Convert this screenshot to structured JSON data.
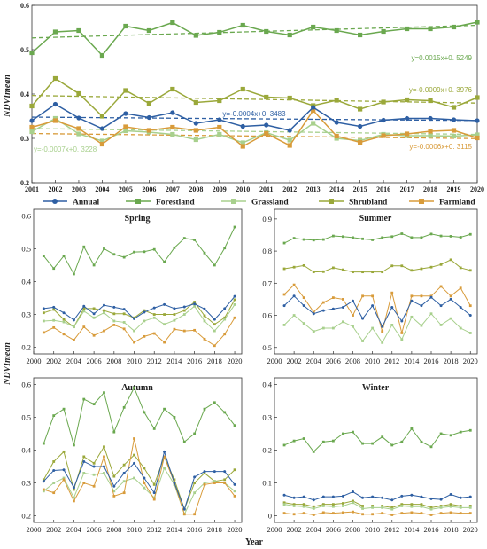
{
  "colors": {
    "Annual": "#2e5fa3",
    "Forestland": "#6aa84f",
    "Grassland": "#a8d08d",
    "Shrubland": "#9aa83a",
    "Farmland": "#d89b3a"
  },
  "legend": {
    "labels": [
      "Annual",
      "Forestland",
      "Grassland",
      "Shrubland",
      "Farmland"
    ]
  },
  "axis_labels": {
    "y_top": "NDVImean",
    "y_bottom": "NDVImean",
    "x_bottom": "Year"
  },
  "chart_data": [
    {
      "id": "annual",
      "type": "line",
      "title": "",
      "x": [
        2001,
        2002,
        2003,
        2004,
        2005,
        2006,
        2007,
        2008,
        2009,
        2010,
        2011,
        2012,
        2013,
        2014,
        2015,
        2016,
        2017,
        2018,
        2019,
        2020
      ],
      "xlim": [
        2001,
        2020
      ],
      "ylim": [
        0.2,
        0.6
      ],
      "yticks": [
        0.2,
        0.3,
        0.4,
        0.5,
        0.6
      ],
      "xticks": [
        2001,
        2002,
        2003,
        2004,
        2005,
        2006,
        2007,
        2008,
        2009,
        2010,
        2011,
        2012,
        2013,
        2014,
        2015,
        2016,
        2017,
        2018,
        2019,
        2020
      ],
      "series": [
        {
          "name": "Annual",
          "values": [
            0.34,
            0.377,
            0.346,
            0.322,
            0.356,
            0.347,
            0.358,
            0.334,
            0.342,
            0.327,
            0.33,
            0.318,
            0.37,
            0.336,
            0.327,
            0.341,
            0.345,
            0.345,
            0.342,
            0.34
          ]
        },
        {
          "name": "Forestland",
          "values": [
            0.493,
            0.54,
            0.543,
            0.487,
            0.553,
            0.543,
            0.561,
            0.532,
            0.539,
            0.555,
            0.541,
            0.533,
            0.551,
            0.543,
            0.533,
            0.541,
            0.547,
            0.547,
            0.551,
            0.562
          ]
        },
        {
          "name": "Grassland",
          "values": [
            0.315,
            0.345,
            0.31,
            0.294,
            0.317,
            0.314,
            0.309,
            0.297,
            0.309,
            0.29,
            0.313,
            0.296,
            0.334,
            0.3,
            0.295,
            0.309,
            0.306,
            0.306,
            0.305,
            0.308
          ]
        },
        {
          "name": "Shrubland",
          "values": [
            0.373,
            0.435,
            0.401,
            0.35,
            0.408,
            0.379,
            0.411,
            0.381,
            0.385,
            0.411,
            0.393,
            0.391,
            0.374,
            0.386,
            0.366,
            0.382,
            0.387,
            0.385,
            0.37,
            0.392
          ]
        },
        {
          "name": "Farmland",
          "values": [
            0.325,
            0.34,
            0.322,
            0.287,
            0.326,
            0.318,
            0.325,
            0.318,
            0.325,
            0.282,
            0.311,
            0.284,
            0.363,
            0.305,
            0.291,
            0.306,
            0.31,
            0.316,
            0.318,
            0.301
          ]
        }
      ],
      "trends": [
        {
          "series": "Forestland",
          "slope": 0.0015,
          "intercept": 0.5249,
          "label": "y=0.0015x+0. 5249"
        },
        {
          "series": "Shrubland",
          "slope": -0.0009,
          "intercept": 0.3976,
          "label": "y=-0.0009x+0. 3976"
        },
        {
          "series": "Annual",
          "slope": -0.0004,
          "intercept": 0.3483,
          "label": "y=-0.0004x+0. 3483"
        },
        {
          "series": "Grassland",
          "slope": -0.0007,
          "intercept": 0.3228,
          "label": "y=-0.0007x+0. 3228"
        },
        {
          "series": "Farmland",
          "slope": -0.0006,
          "intercept": 0.3115,
          "label": "y=-0.0006x+0. 3115"
        }
      ]
    },
    {
      "id": "spring",
      "type": "line",
      "title": "Spring",
      "x": [
        2001,
        2002,
        2003,
        2004,
        2005,
        2006,
        2007,
        2008,
        2009,
        2010,
        2011,
        2012,
        2013,
        2014,
        2015,
        2016,
        2017,
        2018,
        2019,
        2020
      ],
      "xlim": [
        2000,
        2020.7
      ],
      "ylim": [
        0.18,
        0.62
      ],
      "yticks": [
        0.2,
        0.3,
        0.4,
        0.5,
        0.6
      ],
      "xticks": [
        2000,
        2002,
        2004,
        2006,
        2008,
        2010,
        2012,
        2014,
        2016,
        2018,
        2020
      ],
      "series": [
        {
          "name": "Annual",
          "values": [
            0.318,
            0.322,
            0.305,
            0.283,
            0.325,
            0.302,
            0.328,
            0.322,
            0.316,
            0.287,
            0.307,
            0.32,
            0.33,
            0.318,
            0.323,
            0.332,
            0.317,
            0.285,
            0.318,
            0.355
          ]
        },
        {
          "name": "Forestland",
          "values": [
            0.478,
            0.44,
            0.478,
            0.423,
            0.506,
            0.45,
            0.5,
            0.483,
            0.474,
            0.49,
            0.491,
            0.498,
            0.46,
            0.503,
            0.532,
            0.527,
            0.487,
            0.45,
            0.502,
            0.566
          ]
        },
        {
          "name": "Grassland",
          "values": [
            0.28,
            0.282,
            0.277,
            0.262,
            0.31,
            0.29,
            0.305,
            0.28,
            0.276,
            0.25,
            0.28,
            0.29,
            0.27,
            0.282,
            0.3,
            0.325,
            0.28,
            0.25,
            0.285,
            0.33
          ]
        },
        {
          "name": "Shrubland",
          "values": [
            0.305,
            0.315,
            0.285,
            0.262,
            0.318,
            0.318,
            0.312,
            0.302,
            0.302,
            0.29,
            0.312,
            0.3,
            0.3,
            0.3,
            0.312,
            0.338,
            0.296,
            0.27,
            0.29,
            0.345
          ]
        },
        {
          "name": "Farmland",
          "values": [
            0.245,
            0.26,
            0.24,
            0.222,
            0.262,
            0.236,
            0.25,
            0.268,
            0.256,
            0.215,
            0.233,
            0.242,
            0.215,
            0.255,
            0.25,
            0.252,
            0.225,
            0.205,
            0.24,
            0.29
          ]
        }
      ]
    },
    {
      "id": "summer",
      "type": "line",
      "title": "Summer",
      "x": [
        2001,
        2002,
        2003,
        2004,
        2005,
        2006,
        2007,
        2008,
        2009,
        2010,
        2011,
        2012,
        2013,
        2014,
        2015,
        2016,
        2017,
        2018,
        2019,
        2020
      ],
      "xlim": [
        2000,
        2020.7
      ],
      "ylim": [
        0.48,
        0.93
      ],
      "yticks": [
        0.5,
        0.6,
        0.7,
        0.8,
        0.9
      ],
      "xticks": [
        2000,
        2002,
        2004,
        2006,
        2008,
        2010,
        2012,
        2014,
        2016,
        2018,
        2020
      ],
      "series": [
        {
          "name": "Annual",
          "values": [
            0.63,
            0.66,
            0.63,
            0.605,
            0.615,
            0.62,
            0.625,
            0.645,
            0.59,
            0.63,
            0.565,
            0.625,
            0.582,
            0.645,
            0.63,
            0.656,
            0.63,
            0.65,
            0.625,
            0.6
          ]
        },
        {
          "name": "Forestland",
          "values": [
            0.825,
            0.84,
            0.836,
            0.834,
            0.836,
            0.847,
            0.845,
            0.842,
            0.838,
            0.835,
            0.842,
            0.845,
            0.854,
            0.842,
            0.842,
            0.853,
            0.847,
            0.846,
            0.843,
            0.852
          ]
        },
        {
          "name": "Grassland",
          "values": [
            0.57,
            0.6,
            0.575,
            0.55,
            0.56,
            0.56,
            0.58,
            0.565,
            0.52,
            0.56,
            0.515,
            0.57,
            0.525,
            0.595,
            0.568,
            0.605,
            0.57,
            0.59,
            0.56,
            0.545
          ]
        },
        {
          "name": "Shrubland",
          "values": [
            0.745,
            0.75,
            0.755,
            0.735,
            0.736,
            0.748,
            0.742,
            0.735,
            0.735,
            0.735,
            0.735,
            0.754,
            0.754,
            0.74,
            0.745,
            0.75,
            0.758,
            0.773,
            0.748,
            0.74
          ]
        },
        {
          "name": "Farmland",
          "values": [
            0.665,
            0.695,
            0.655,
            0.61,
            0.64,
            0.655,
            0.65,
            0.6,
            0.66,
            0.66,
            0.55,
            0.67,
            0.545,
            0.66,
            0.66,
            0.66,
            0.69,
            0.66,
            0.685,
            0.63
          ]
        }
      ]
    },
    {
      "id": "autumn",
      "type": "line",
      "title": "Autumn",
      "x": [
        2001,
        2002,
        2003,
        2004,
        2005,
        2006,
        2007,
        2008,
        2009,
        2010,
        2011,
        2012,
        2013,
        2014,
        2015,
        2016,
        2017,
        2018,
        2019,
        2020
      ],
      "xlim": [
        2000,
        2020.7
      ],
      "ylim": [
        0.18,
        0.62
      ],
      "yticks": [
        0.2,
        0.3,
        0.4,
        0.5,
        0.6
      ],
      "xticks": [
        2000,
        2002,
        2004,
        2006,
        2008,
        2010,
        2012,
        2014,
        2016,
        2018,
        2020
      ],
      "series": [
        {
          "name": "Annual",
          "values": [
            0.305,
            0.338,
            0.34,
            0.286,
            0.365,
            0.35,
            0.35,
            0.29,
            0.33,
            0.36,
            0.315,
            0.27,
            0.395,
            0.3,
            0.22,
            0.318,
            0.335,
            0.335,
            0.335,
            0.295
          ]
        },
        {
          "name": "Forestland",
          "values": [
            0.42,
            0.505,
            0.525,
            0.415,
            0.555,
            0.54,
            0.575,
            0.455,
            0.53,
            0.59,
            0.515,
            0.465,
            0.525,
            0.5,
            0.425,
            0.45,
            0.525,
            0.545,
            0.515,
            0.475
          ]
        },
        {
          "name": "Grassland",
          "values": [
            0.275,
            0.3,
            0.315,
            0.255,
            0.33,
            0.325,
            0.33,
            0.275,
            0.305,
            0.315,
            0.285,
            0.255,
            0.345,
            0.295,
            0.205,
            0.27,
            0.3,
            0.305,
            0.3,
            0.275
          ]
        },
        {
          "name": "Shrubland",
          "values": [
            0.31,
            0.365,
            0.395,
            0.28,
            0.38,
            0.36,
            0.41,
            0.32,
            0.355,
            0.385,
            0.345,
            0.295,
            0.38,
            0.31,
            0.22,
            0.3,
            0.33,
            0.305,
            0.31,
            0.34
          ]
        },
        {
          "name": "Farmland",
          "values": [
            0.28,
            0.27,
            0.31,
            0.245,
            0.3,
            0.29,
            0.38,
            0.26,
            0.27,
            0.435,
            0.3,
            0.25,
            0.38,
            0.3,
            0.205,
            0.205,
            0.295,
            0.3,
            0.3,
            0.26
          ]
        }
      ]
    },
    {
      "id": "winter",
      "type": "line",
      "title": "Winter",
      "x": [
        2001,
        2002,
        2003,
        2004,
        2005,
        2006,
        2007,
        2008,
        2009,
        2010,
        2011,
        2012,
        2013,
        2014,
        2015,
        2016,
        2017,
        2018,
        2019,
        2020
      ],
      "xlim": [
        2000,
        2020.7
      ],
      "ylim": [
        -0.02,
        0.42
      ],
      "yticks": [
        0.0,
        0.1,
        0.2,
        0.3,
        0.4
      ],
      "xticks": [
        2000,
        2002,
        2004,
        2006,
        2008,
        2010,
        2012,
        2014,
        2016,
        2018,
        2020
      ],
      "series": [
        {
          "name": "Annual",
          "values": [
            0.063,
            0.055,
            0.058,
            0.048,
            0.058,
            0.058,
            0.06,
            0.073,
            0.055,
            0.058,
            0.055,
            0.048,
            0.06,
            0.063,
            0.058,
            0.052,
            0.05,
            0.065,
            0.055,
            0.058
          ]
        },
        {
          "name": "Forestland",
          "values": [
            0.215,
            0.228,
            0.235,
            0.195,
            0.225,
            0.228,
            0.25,
            0.255,
            0.22,
            0.22,
            0.24,
            0.215,
            0.225,
            0.265,
            0.225,
            0.21,
            0.25,
            0.245,
            0.255,
            0.26
          ]
        },
        {
          "name": "Grassland",
          "values": [
            0.035,
            0.03,
            0.028,
            0.022,
            0.03,
            0.028,
            0.03,
            0.04,
            0.022,
            0.025,
            0.025,
            0.02,
            0.03,
            0.028,
            0.028,
            0.02,
            0.025,
            0.028,
            0.025,
            0.025
          ]
        },
        {
          "name": "Shrubland",
          "values": [
            0.04,
            0.035,
            0.035,
            0.028,
            0.035,
            0.035,
            0.038,
            0.045,
            0.03,
            0.03,
            0.03,
            0.025,
            0.035,
            0.035,
            0.035,
            0.025,
            0.03,
            0.035,
            0.03,
            0.03
          ]
        },
        {
          "name": "Farmland",
          "values": [
            0.008,
            0.005,
            0.008,
            0.003,
            0.01,
            0.008,
            0.01,
            0.012,
            0.005,
            0.005,
            0.008,
            0.003,
            0.008,
            0.01,
            0.008,
            0.003,
            0.008,
            0.01,
            0.008,
            0.008
          ]
        }
      ]
    }
  ]
}
